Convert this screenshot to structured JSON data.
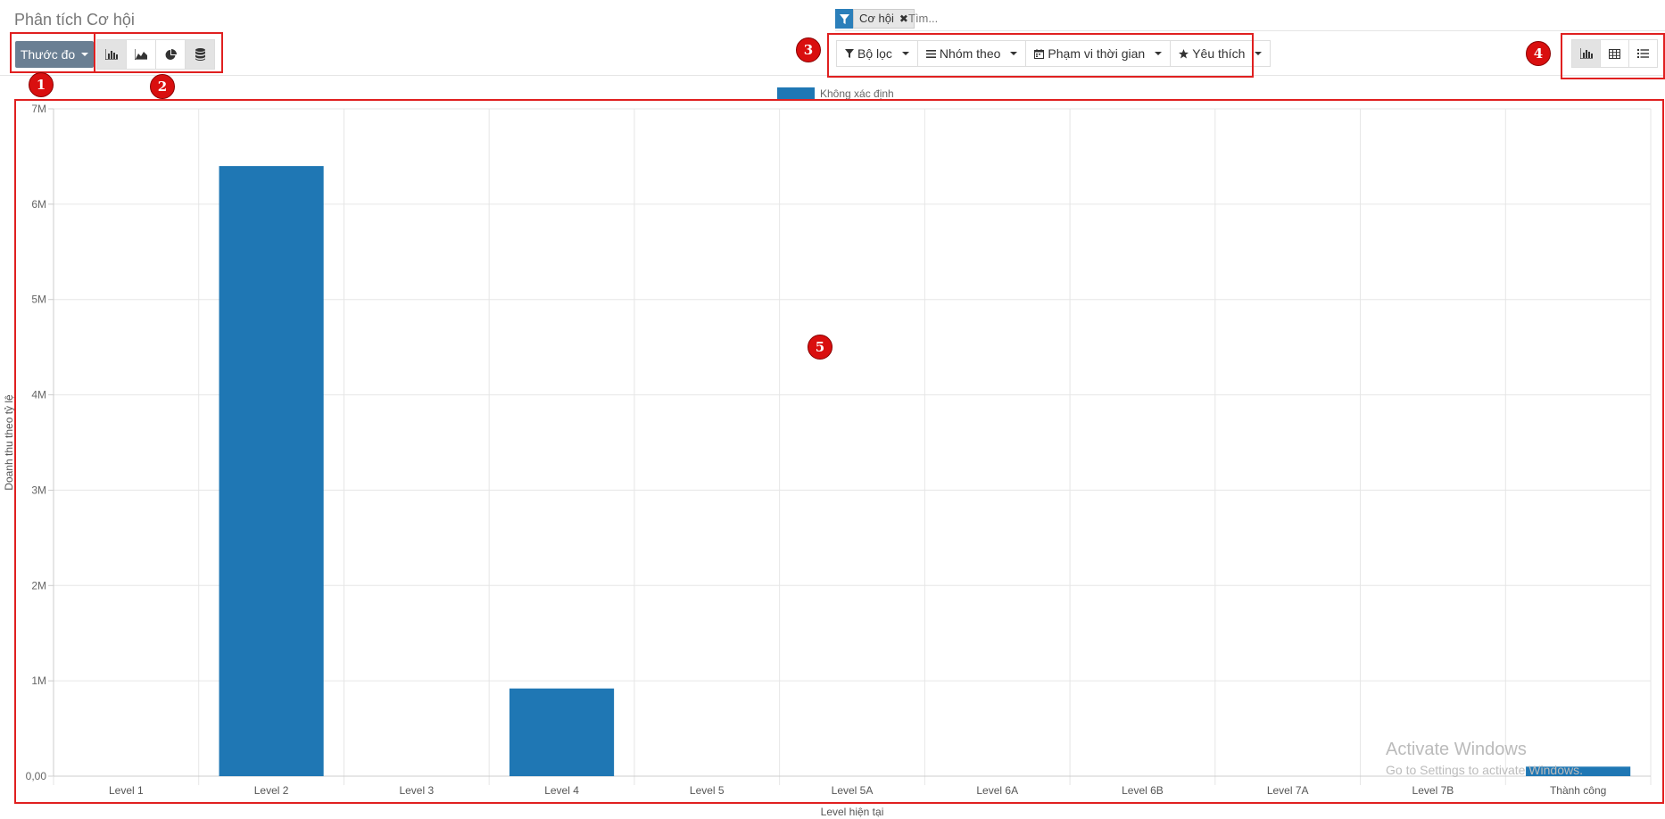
{
  "title": "Phân tích Cơ hội",
  "search": {
    "facet_label": "Cơ hội",
    "facet_icon": "filter-icon",
    "placeholder": "Tìm..."
  },
  "toolbar": {
    "measure_label": "Thước đo",
    "chart_types": [
      "bar-chart-icon",
      "area-chart-icon",
      "pie-chart-icon",
      "database-icon"
    ],
    "filters": [
      {
        "icon": "filter-icon",
        "label": "Bộ lọc"
      },
      {
        "icon": "list-icon",
        "label": "Nhóm theo"
      },
      {
        "icon": "calendar-icon",
        "label": "Phạm vi thời gian"
      },
      {
        "icon": "star-icon",
        "label": "Yêu thích"
      }
    ],
    "views": [
      "graph-view-icon",
      "pivot-view-icon",
      "list-view-icon"
    ]
  },
  "annotations": [
    "1",
    "2",
    "3",
    "4",
    "5"
  ],
  "watermark": {
    "line1": "Activate Windows",
    "line2": "Go to Settings to activate Windows."
  },
  "colors": {
    "bar": "#1f77b4",
    "annotation": "#e02020",
    "button": "#6a7f93",
    "facet": "#2b7fba"
  },
  "chart_data": {
    "type": "bar",
    "categories": [
      "Level 1",
      "Level 2",
      "Level 3",
      "Level 4",
      "Level 5",
      "Level 5A",
      "Level 6A",
      "Level 6B",
      "Level 7A",
      "Level 7B",
      "Thành công"
    ],
    "series": [
      {
        "name": "Không xác định",
        "values": [
          0,
          6400000,
          0,
          920000,
          0,
          0,
          0,
          0,
          0,
          0,
          100000
        ]
      }
    ],
    "yticks": [
      0,
      1000000,
      2000000,
      3000000,
      4000000,
      5000000,
      6000000,
      7000000
    ],
    "ytick_labels": [
      "0,00",
      "1M",
      "2M",
      "3M",
      "4M",
      "5M",
      "6M",
      "7M"
    ],
    "ylim": [
      0,
      7000000
    ],
    "xlabel": "Level hiện tại",
    "ylabel": "Doanh thu theo tỷ lệ",
    "grid": true,
    "legend": "top-center"
  }
}
